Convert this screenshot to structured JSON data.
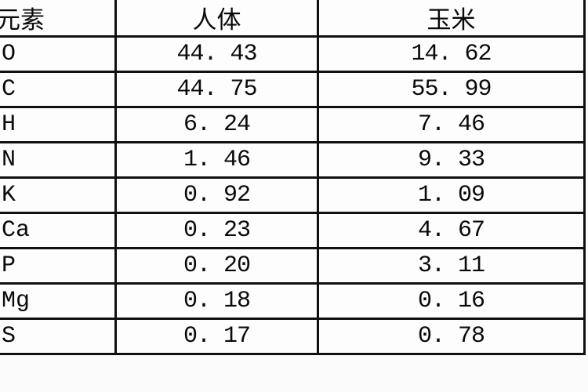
{
  "table": {
    "title_semantic": "element-mass-percentage-comparison",
    "columns": [
      {
        "key": "element",
        "label": "元素"
      },
      {
        "key": "human",
        "label": "人体"
      },
      {
        "key": "corn",
        "label": "玉米"
      }
    ],
    "rows": [
      {
        "element": "O",
        "human": "44. 43",
        "corn": "14. 62"
      },
      {
        "element": "C",
        "human": "44. 75",
        "corn": "55. 99"
      },
      {
        "element": "H",
        "human": "6. 24",
        "corn": "7. 46"
      },
      {
        "element": "N",
        "human": "1. 46",
        "corn": "9. 33"
      },
      {
        "element": "K",
        "human": "0. 92",
        "corn": "1. 09"
      },
      {
        "element": "Ca",
        "human": "0. 23",
        "corn": "4. 67"
      },
      {
        "element": "P",
        "human": "0. 20",
        "corn": "3. 11"
      },
      {
        "element": "Mg",
        "human": "0. 18",
        "corn": "0. 16"
      },
      {
        "element": "S",
        "human": "0. 17",
        "corn": "0. 78"
      }
    ]
  },
  "chart_data": {
    "type": "table",
    "categories": [
      "O",
      "C",
      "H",
      "N",
      "K",
      "Ca",
      "P",
      "Mg",
      "S"
    ],
    "series": [
      {
        "name": "人体",
        "values": [
          44.43,
          44.75,
          6.24,
          1.46,
          0.92,
          0.23,
          0.2,
          0.18,
          0.17
        ]
      },
      {
        "name": "玉米",
        "values": [
          14.62,
          55.99,
          7.46,
          9.33,
          1.09,
          4.67,
          3.11,
          0.16,
          0.78
        ]
      }
    ],
    "title": "元素 / 人体 / 玉米"
  },
  "colors": {
    "border": "#101010",
    "text": "#0a0a0a",
    "background": "#fbfbfb",
    "cell_background": "#fdfdfd"
  }
}
